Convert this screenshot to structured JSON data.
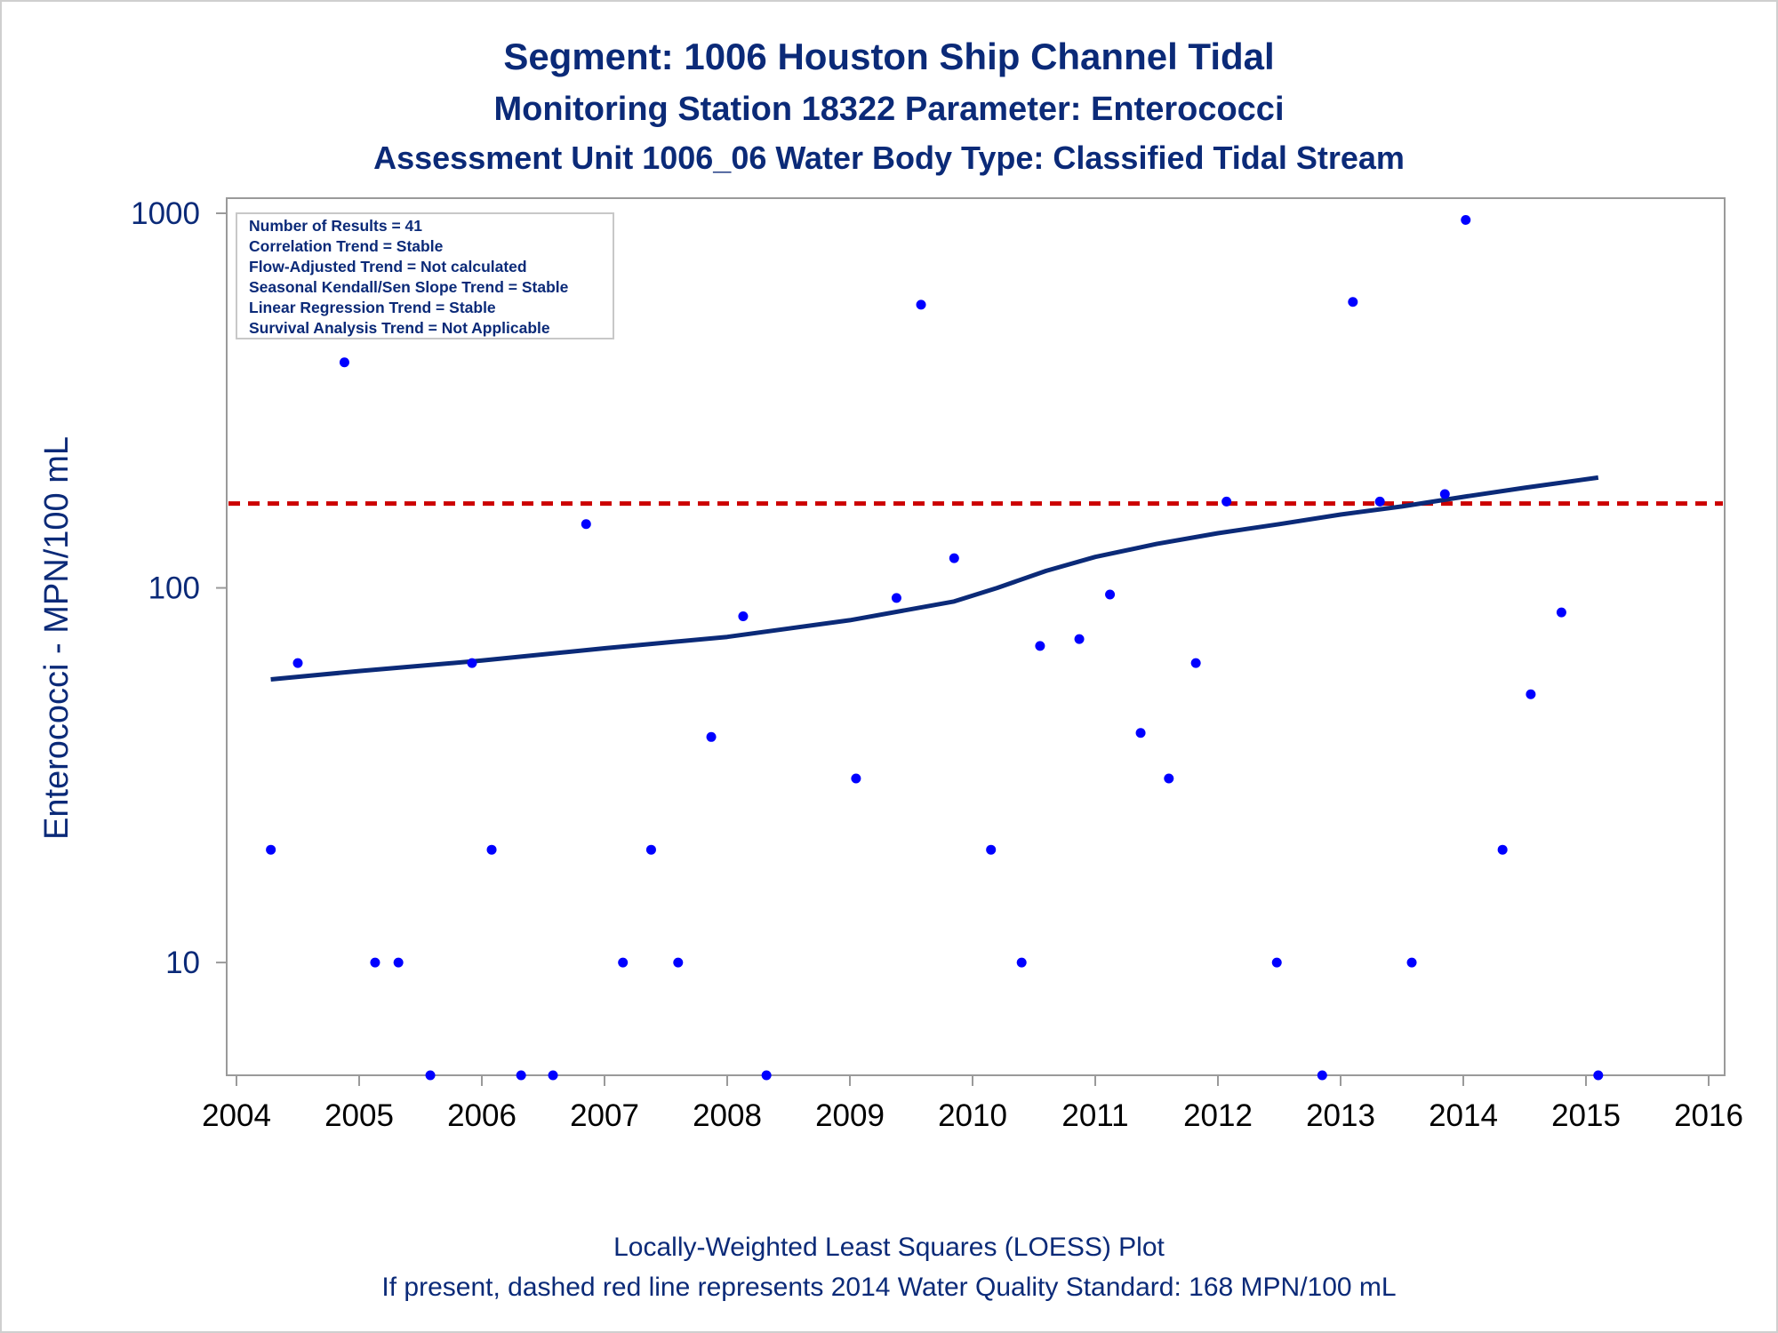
{
  "chart_data": {
    "type": "scatter",
    "title": "Segment: 1006  Houston Ship Channel Tidal",
    "subtitle": "Monitoring Station 18322 Parameter: Enterococci",
    "subtitle2": "Assessment Unit 1006_06   Water Body Type: Classified Tidal Stream",
    "xlabel": "",
    "ylabel": "Enterococci - MPN/100 mL",
    "footnote1": "Locally-Weighted Least Squares (LOESS) Plot",
    "footnote2": "If present, dashed red line represents 2014 Water Quality Standard: 168 MPN/100 mL",
    "y_scale": "log",
    "xlim": [
      2004,
      2016
    ],
    "ylim": [
      5,
      1000
    ],
    "x_ticks": [
      2004,
      2005,
      2006,
      2007,
      2008,
      2009,
      2010,
      2011,
      2012,
      2013,
      2014,
      2015,
      2016
    ],
    "y_ticks": [
      10,
      100,
      1000
    ],
    "grid": false,
    "colors": {
      "points": "#0000ff",
      "loess": "#0b2a78",
      "standard": "#cc0000",
      "text": "#0b2a78"
    },
    "stats_box": [
      "Number of Results = 41",
      "Correlation Trend = Stable",
      "Flow-Adjusted Trend = Not calculated",
      "Seasonal Kendall/Sen Slope Trend = Stable",
      "Linear Regression Trend = Stable",
      "Survival Analysis Trend = Not Applicable"
    ],
    "points": [
      {
        "x": 2004.28,
        "y": 20
      },
      {
        "x": 2004.5,
        "y": 63
      },
      {
        "x": 2004.88,
        "y": 400
      },
      {
        "x": 2005.13,
        "y": 10
      },
      {
        "x": 2005.32,
        "y": 10
      },
      {
        "x": 2005.58,
        "y": 5
      },
      {
        "x": 2005.92,
        "y": 63
      },
      {
        "x": 2006.08,
        "y": 20
      },
      {
        "x": 2006.32,
        "y": 5
      },
      {
        "x": 2006.58,
        "y": 5
      },
      {
        "x": 2006.85,
        "y": 148
      },
      {
        "x": 2007.15,
        "y": 10
      },
      {
        "x": 2007.38,
        "y": 20
      },
      {
        "x": 2007.6,
        "y": 10
      },
      {
        "x": 2007.87,
        "y": 40
      },
      {
        "x": 2008.13,
        "y": 84
      },
      {
        "x": 2008.32,
        "y": 5
      },
      {
        "x": 2009.05,
        "y": 31
      },
      {
        "x": 2009.38,
        "y": 94
      },
      {
        "x": 2009.58,
        "y": 570
      },
      {
        "x": 2009.85,
        "y": 120
      },
      {
        "x": 2010.15,
        "y": 20
      },
      {
        "x": 2010.4,
        "y": 10
      },
      {
        "x": 2010.55,
        "y": 70
      },
      {
        "x": 2010.87,
        "y": 73
      },
      {
        "x": 2011.12,
        "y": 96
      },
      {
        "x": 2011.37,
        "y": 41
      },
      {
        "x": 2011.6,
        "y": 31
      },
      {
        "x": 2011.82,
        "y": 63
      },
      {
        "x": 2012.07,
        "y": 170
      },
      {
        "x": 2012.48,
        "y": 10
      },
      {
        "x": 2012.85,
        "y": 5
      },
      {
        "x": 2013.1,
        "y": 580
      },
      {
        "x": 2013.32,
        "y": 170
      },
      {
        "x": 2013.58,
        "y": 10
      },
      {
        "x": 2013.85,
        "y": 178
      },
      {
        "x": 2014.02,
        "y": 960
      },
      {
        "x": 2014.32,
        "y": 20
      },
      {
        "x": 2014.55,
        "y": 52
      },
      {
        "x": 2014.8,
        "y": 86
      },
      {
        "x": 2015.1,
        "y": 5
      }
    ],
    "loess": [
      {
        "x": 2004.28,
        "y": 57
      },
      {
        "x": 2005.0,
        "y": 60
      },
      {
        "x": 2006.0,
        "y": 64
      },
      {
        "x": 2007.0,
        "y": 69
      },
      {
        "x": 2008.0,
        "y": 74
      },
      {
        "x": 2009.0,
        "y": 82
      },
      {
        "x": 2009.85,
        "y": 92
      },
      {
        "x": 2010.2,
        "y": 100
      },
      {
        "x": 2010.6,
        "y": 111
      },
      {
        "x": 2011.0,
        "y": 121
      },
      {
        "x": 2011.5,
        "y": 131
      },
      {
        "x": 2012.0,
        "y": 140
      },
      {
        "x": 2012.5,
        "y": 148
      },
      {
        "x": 2013.0,
        "y": 157
      },
      {
        "x": 2013.5,
        "y": 165
      },
      {
        "x": 2014.0,
        "y": 175
      },
      {
        "x": 2014.5,
        "y": 185
      },
      {
        "x": 2015.1,
        "y": 197
      }
    ],
    "standard_line": 168
  }
}
